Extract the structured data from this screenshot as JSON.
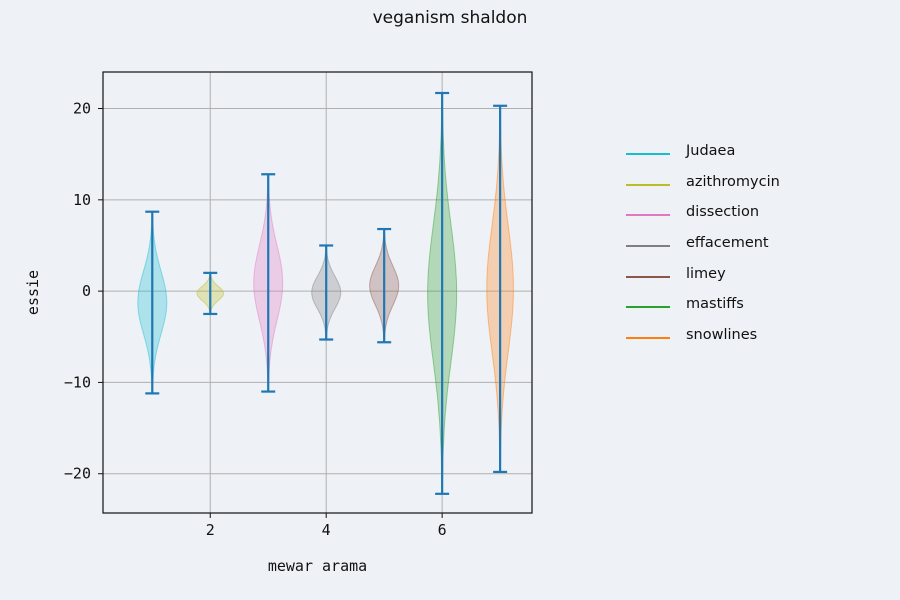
{
  "chart_data": {
    "type": "violin",
    "title": "veganism shaldon",
    "xlabel": "mewar arama",
    "ylabel": "essie",
    "xlim": [
      0.15,
      7.55
    ],
    "ylim": [
      -24.3,
      24.0
    ],
    "xticks": [
      2,
      4,
      6
    ],
    "yticks": [
      -20,
      -10,
      0,
      10,
      20
    ],
    "grid": true,
    "legend_position": "right, outside plot",
    "whisker_color": "#1f77b4",
    "series": [
      {
        "name": "Judaea",
        "x": 1,
        "min": -11.2,
        "max": 8.7,
        "color": "#17becf",
        "half_width": 0.25,
        "shape": "wide"
      },
      {
        "name": "azithromycin",
        "x": 2,
        "min": -2.5,
        "max": 2.0,
        "color": "#bcbd22",
        "half_width": 0.23,
        "shape": "wide"
      },
      {
        "name": "dissection",
        "x": 3,
        "min": -11.0,
        "max": 12.8,
        "color": "#e377c2",
        "half_width": 0.25,
        "shape": "wide"
      },
      {
        "name": "effacement",
        "x": 4,
        "min": -5.3,
        "max": 5.0,
        "color": "#7f7f7f",
        "half_width": 0.25,
        "shape": "wide"
      },
      {
        "name": "limey",
        "x": 5,
        "min": -5.6,
        "max": 6.8,
        "color": "#8c564b",
        "half_width": 0.25,
        "shape": "wide"
      },
      {
        "name": "mastiffs",
        "x": 6,
        "min": -22.2,
        "max": 21.7,
        "color": "#2ca02c",
        "half_width": 0.25,
        "shape": "wide"
      },
      {
        "name": "snowlines",
        "x": 7,
        "min": -19.8,
        "max": 20.3,
        "color": "#ff7f0e",
        "half_width": 0.23,
        "shape": "wide"
      }
    ]
  }
}
